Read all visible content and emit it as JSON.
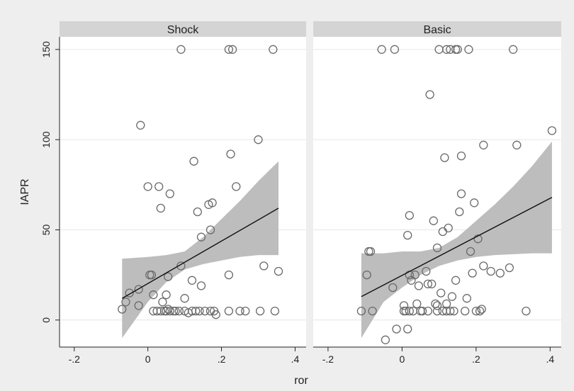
{
  "chart_data": {
    "type": "scatter",
    "xlabel": "ror",
    "ylabel": "IAPR",
    "xlim": [
      -0.24,
      0.43
    ],
    "ylim": [
      -15,
      157
    ],
    "xticks": [
      -0.2,
      0,
      0.2,
      0.4
    ],
    "xtick_labels": [
      "-.2",
      "0",
      ".2",
      ".4"
    ],
    "yticks": [
      0,
      50,
      100,
      150
    ],
    "ytick_labels": [
      "0",
      "50",
      "100",
      "150"
    ],
    "grid": true,
    "background": "#eeeeee",
    "strip_color": "#d4d4d4",
    "ci_color": "#bdbdbd",
    "marker_color": "#6a6a6a",
    "panels": [
      {
        "title": "Shock",
        "fit": {
          "x": [
            -0.07,
            0.355
          ],
          "y": [
            12,
            62
          ]
        },
        "ci": {
          "x": [
            -0.07,
            0.0,
            0.05,
            0.1,
            0.15,
            0.2,
            0.25,
            0.3,
            0.355
          ],
          "lower": [
            -10,
            10,
            21,
            28,
            31,
            33,
            35,
            36,
            36
          ],
          "upper": [
            34,
            35,
            36,
            38,
            46,
            56,
            66,
            77,
            88
          ]
        },
        "points": [
          [
            -0.07,
            6
          ],
          [
            -0.06,
            10
          ],
          [
            -0.05,
            15
          ],
          [
            -0.025,
            17
          ],
          [
            -0.025,
            8
          ],
          [
            -0.02,
            108
          ],
          [
            0.0,
            74
          ],
          [
            0.005,
            25
          ],
          [
            0.01,
            25
          ],
          [
            0.015,
            14
          ],
          [
            0.015,
            5
          ],
          [
            0.025,
            5
          ],
          [
            0.03,
            74
          ],
          [
            0.035,
            62
          ],
          [
            0.035,
            5
          ],
          [
            0.04,
            10
          ],
          [
            0.045,
            5
          ],
          [
            0.05,
            14
          ],
          [
            0.05,
            5
          ],
          [
            0.055,
            6
          ],
          [
            0.055,
            24
          ],
          [
            0.06,
            5
          ],
          [
            0.06,
            70
          ],
          [
            0.07,
            5
          ],
          [
            0.075,
            5
          ],
          [
            0.085,
            5
          ],
          [
            0.09,
            150
          ],
          [
            0.09,
            30
          ],
          [
            0.1,
            5
          ],
          [
            0.1,
            12
          ],
          [
            0.11,
            4
          ],
          [
            0.12,
            22
          ],
          [
            0.12,
            5
          ],
          [
            0.125,
            88
          ],
          [
            0.13,
            5
          ],
          [
            0.135,
            60
          ],
          [
            0.14,
            5
          ],
          [
            0.145,
            46
          ],
          [
            0.145,
            19
          ],
          [
            0.155,
            5
          ],
          [
            0.165,
            64
          ],
          [
            0.17,
            5
          ],
          [
            0.17,
            50
          ],
          [
            0.175,
            65
          ],
          [
            0.18,
            5
          ],
          [
            0.185,
            3
          ],
          [
            0.22,
            150
          ],
          [
            0.22,
            25
          ],
          [
            0.22,
            5
          ],
          [
            0.225,
            92
          ],
          [
            0.23,
            150
          ],
          [
            0.24,
            74
          ],
          [
            0.25,
            5
          ],
          [
            0.265,
            5
          ],
          [
            0.3,
            100
          ],
          [
            0.305,
            5
          ],
          [
            0.315,
            30
          ],
          [
            0.34,
            150
          ],
          [
            0.345,
            5
          ],
          [
            0.355,
            27
          ]
        ]
      },
      {
        "title": "Basic",
        "fit": {
          "x": [
            -0.11,
            0.405
          ],
          "y": [
            13,
            68
          ]
        },
        "ci": {
          "x": [
            -0.11,
            -0.05,
            0.0,
            0.05,
            0.1,
            0.15,
            0.2,
            0.25,
            0.3,
            0.35,
            0.405
          ],
          "lower": [
            -10,
            10,
            18,
            25,
            30,
            33,
            35,
            36,
            36.5,
            37,
            37
          ],
          "upper": [
            37,
            37,
            38,
            38,
            40,
            46,
            55,
            64,
            74,
            85,
            99
          ]
        },
        "points": [
          [
            -0.11,
            5
          ],
          [
            -0.095,
            25
          ],
          [
            -0.09,
            38
          ],
          [
            -0.085,
            38
          ],
          [
            -0.08,
            5
          ],
          [
            -0.055,
            150
          ],
          [
            -0.045,
            -11
          ],
          [
            -0.025,
            18
          ],
          [
            -0.02,
            150
          ],
          [
            -0.015,
            -5
          ],
          [
            0.005,
            8
          ],
          [
            0.005,
            5
          ],
          [
            0.01,
            5
          ],
          [
            0.015,
            -5
          ],
          [
            0.015,
            47
          ],
          [
            0.02,
            5
          ],
          [
            0.02,
            25
          ],
          [
            0.02,
            58
          ],
          [
            0.025,
            22
          ],
          [
            0.03,
            5
          ],
          [
            0.035,
            25
          ],
          [
            0.04,
            9
          ],
          [
            0.045,
            19
          ],
          [
            0.05,
            5
          ],
          [
            0.055,
            5
          ],
          [
            0.065,
            27
          ],
          [
            0.07,
            5
          ],
          [
            0.07,
            20
          ],
          [
            0.075,
            125
          ],
          [
            0.08,
            20
          ],
          [
            0.085,
            55
          ],
          [
            0.09,
            9
          ],
          [
            0.095,
            5
          ],
          [
            0.095,
            8
          ],
          [
            0.095,
            40
          ],
          [
            0.1,
            150
          ],
          [
            0.105,
            15
          ],
          [
            0.11,
            5
          ],
          [
            0.11,
            49
          ],
          [
            0.115,
            90
          ],
          [
            0.12,
            150
          ],
          [
            0.12,
            5
          ],
          [
            0.12,
            9
          ],
          [
            0.125,
            51
          ],
          [
            0.13,
            5
          ],
          [
            0.13,
            150
          ],
          [
            0.135,
            13
          ],
          [
            0.14,
            5
          ],
          [
            0.145,
            150
          ],
          [
            0.145,
            22
          ],
          [
            0.15,
            150
          ],
          [
            0.155,
            60
          ],
          [
            0.16,
            70
          ],
          [
            0.16,
            91
          ],
          [
            0.17,
            5
          ],
          [
            0.175,
            12
          ],
          [
            0.18,
            150
          ],
          [
            0.185,
            38
          ],
          [
            0.19,
            26
          ],
          [
            0.195,
            65
          ],
          [
            0.2,
            5
          ],
          [
            0.205,
            45
          ],
          [
            0.21,
            5
          ],
          [
            0.215,
            6
          ],
          [
            0.22,
            30
          ],
          [
            0.22,
            97
          ],
          [
            0.24,
            27
          ],
          [
            0.265,
            26
          ],
          [
            0.29,
            29
          ],
          [
            0.3,
            150
          ],
          [
            0.31,
            97
          ],
          [
            0.335,
            5
          ],
          [
            0.405,
            105
          ]
        ]
      }
    ]
  }
}
